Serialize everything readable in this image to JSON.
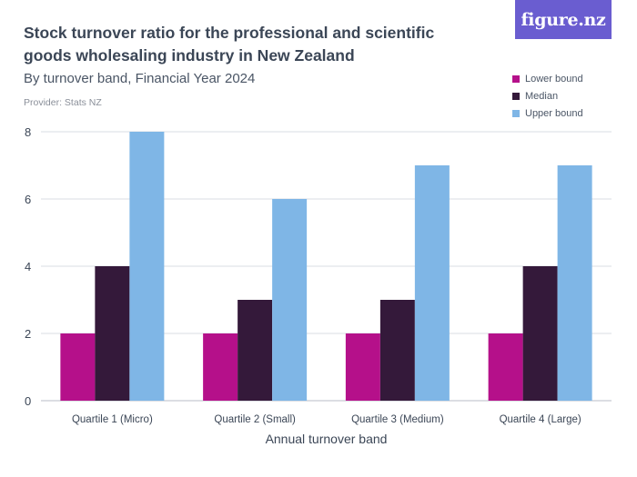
{
  "header": {
    "title": "Stock turnover ratio for the professional and scientific goods wholesaling industry in New Zealand",
    "subtitle": "By turnover band, Financial Year 2024",
    "provider": "Provider: Stats NZ",
    "logo_text": "figure.nz"
  },
  "colors": {
    "lower": "#b5108a",
    "median": "#34193a",
    "upper": "#7fb6e6",
    "grid": "#d9dde3",
    "axis_text": "#3b4656"
  },
  "chart_data": {
    "type": "bar",
    "title": "Stock turnover ratio for the professional and scientific goods wholesaling industry in New Zealand",
    "subtitle": "By turnover band, Financial Year 2024",
    "xlabel": "Annual turnover band",
    "ylabel": "",
    "categories": [
      "Quartile 1 (Micro)",
      "Quartile 2 (Small)",
      "Quartile 3 (Medium)",
      "Quartile 4 (Large)"
    ],
    "series": [
      {
        "name": "Lower bound",
        "values": [
          2,
          2,
          2,
          2
        ]
      },
      {
        "name": "Median",
        "values": [
          4,
          3,
          3,
          4
        ]
      },
      {
        "name": "Upper bound",
        "values": [
          8,
          6,
          7,
          7
        ]
      }
    ],
    "ylim": [
      0,
      8
    ],
    "yticks": [
      0,
      2,
      4,
      6,
      8
    ],
    "grid": true,
    "legend": "top-right"
  }
}
